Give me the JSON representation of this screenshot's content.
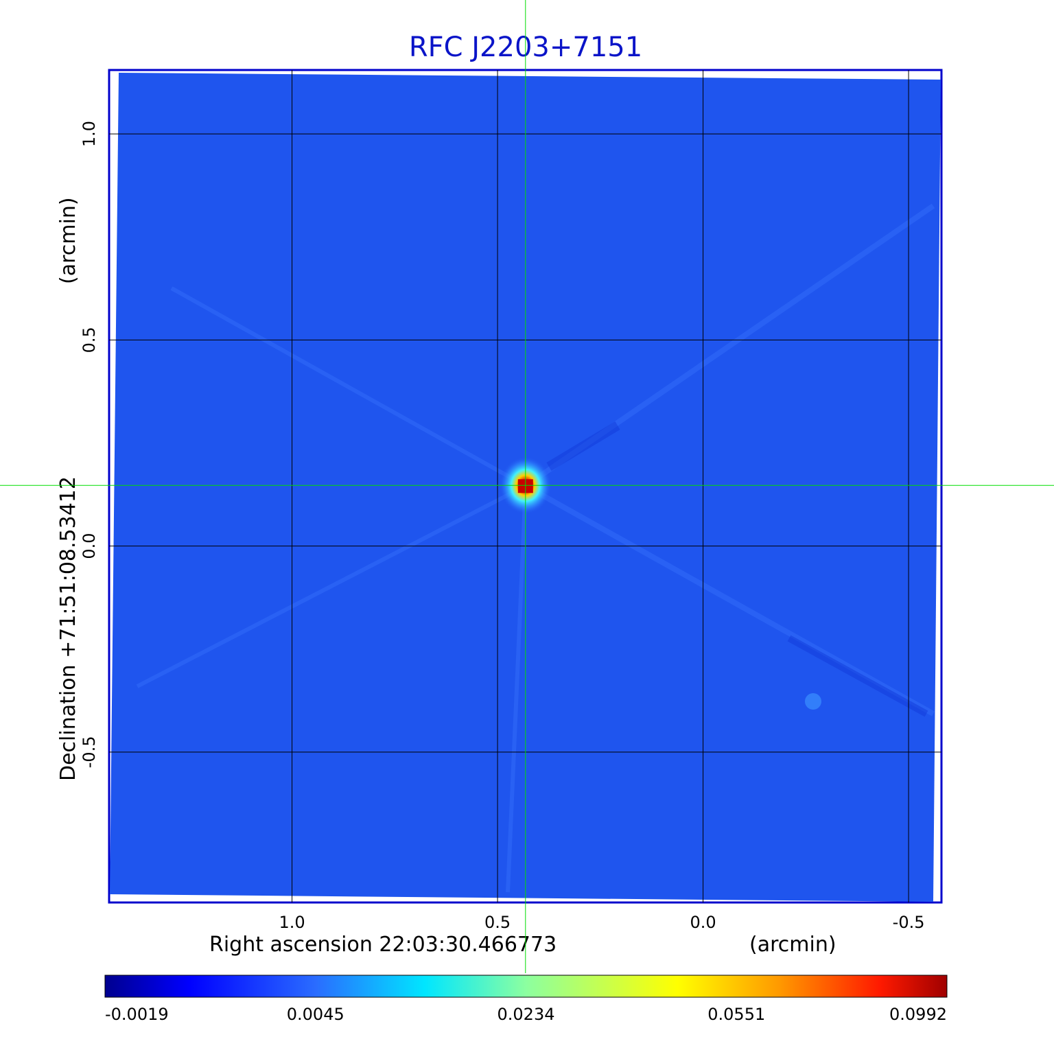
{
  "chart_data": {
    "type": "heatmap",
    "title": "RFC J2203+7151",
    "xlabel": "Right ascension  22:03:30.466773",
    "xunit": "(arcmin)",
    "ylabel": "Declination  +71:51:08.53412",
    "yunit": "(arcmin)",
    "x_ticks": [
      1.0,
      0.5,
      0.0,
      -0.5
    ],
    "x_tick_labels": [
      "1.0",
      "0.5",
      "0.0",
      "-0.5"
    ],
    "y_ticks": [
      1.0,
      0.5,
      0.0,
      -0.5
    ],
    "y_tick_labels": [
      "1.0",
      "0.5",
      "0.0",
      "-0.5"
    ],
    "xlim": [
      1.445,
      -0.58
    ],
    "ylim": [
      -0.865,
      1.155
    ],
    "grid": true,
    "crosshair": {
      "x": 0.432,
      "y": 0.147,
      "color": "#00dd00"
    },
    "peak": {
      "x": 0.432,
      "y": 0.147,
      "value": 0.0992
    },
    "colormap": "jet",
    "colorbar": {
      "tick_labels": [
        "-0.0019",
        "0.0045",
        "0.0234",
        "0.0551",
        "0.0992"
      ],
      "min": -0.0019,
      "max": 0.0992
    },
    "colors": {
      "title": "#0a14c8",
      "frame": "#0000cc",
      "background_pixel": "#1f55ee",
      "grid": "#000000"
    }
  }
}
